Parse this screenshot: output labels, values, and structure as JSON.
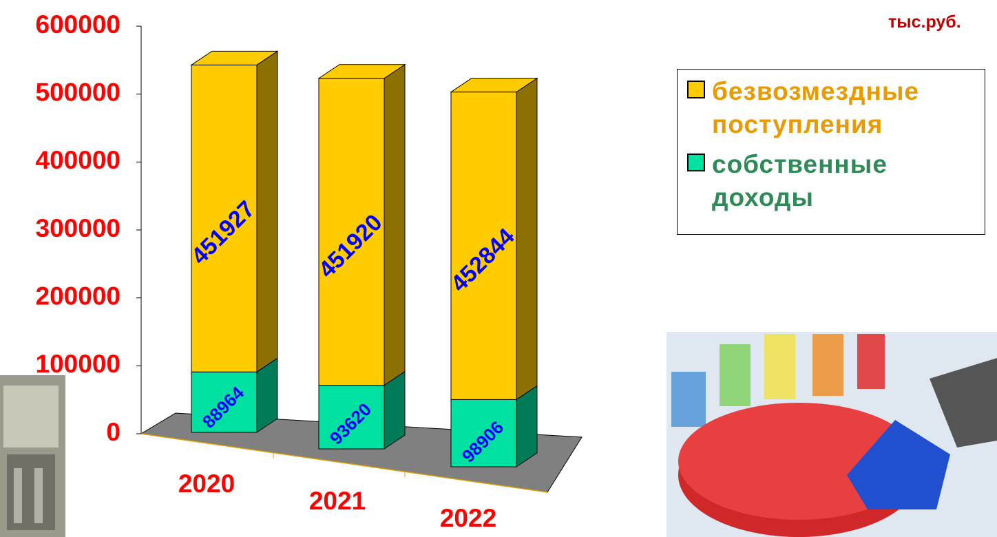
{
  "chart_data": {
    "type": "bar",
    "stacked": true,
    "unit": "тыс.руб.",
    "categories": [
      "2020",
      "2021",
      "2022"
    ],
    "series": [
      {
        "name": "собственные доходы",
        "color": "#00e0a0",
        "text_color": "#2e8b57",
        "values": [
          88964,
          93620,
          98906
        ]
      },
      {
        "name": "безвозмездные поступления",
        "color": "#ffcc00",
        "text_color": "#e89a00",
        "values": [
          451927,
          451920,
          452844
        ]
      }
    ],
    "ylim": [
      0,
      600000
    ],
    "yticks": [
      0,
      100000,
      200000,
      300000,
      400000,
      500000,
      600000
    ],
    "legend_order": [
      1,
      0
    ]
  }
}
